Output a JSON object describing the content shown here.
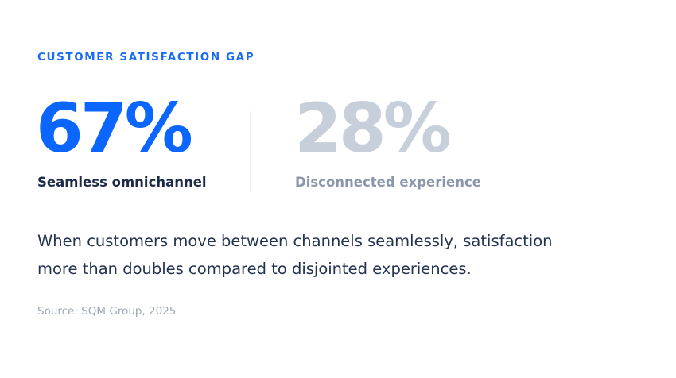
{
  "eyebrow": "CUSTOMER SATISFACTION GAP",
  "stats": [
    {
      "value": "67%",
      "label": "Seamless omnichannel",
      "color": "#0a66ff"
    },
    {
      "value": "28%",
      "label": "Disconnected experience",
      "color": "#c7cfda"
    }
  ],
  "description": {
    "line1": "When customers move between channels seamlessly, satisfaction",
    "line2": "more than doubles compared to disjointed experiences."
  },
  "source": "Source: SQM Group, 2025",
  "colors": {
    "accent": "#0a66ff",
    "muted": "#c7cfda",
    "text": "#23324f",
    "source": "#9ca7b8"
  }
}
